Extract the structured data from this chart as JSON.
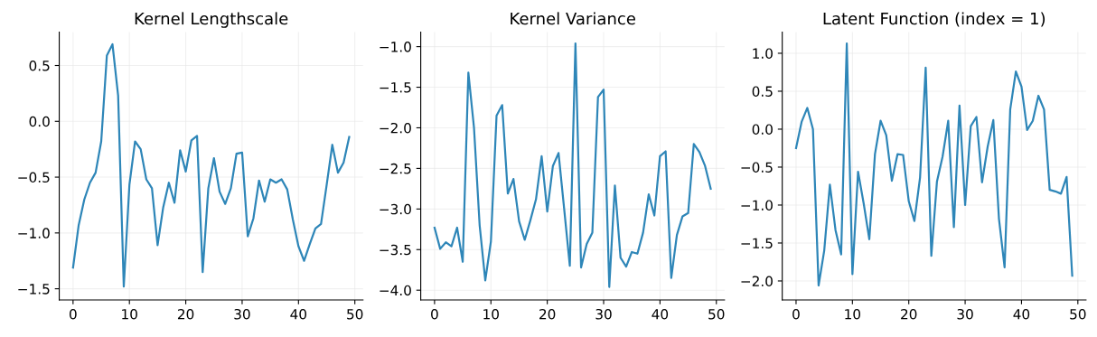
{
  "chart_data": [
    {
      "type": "line",
      "title": "Kernel Lengthscale",
      "x": [
        0,
        1,
        2,
        3,
        4,
        5,
        6,
        7,
        8,
        9,
        10,
        11,
        12,
        13,
        14,
        15,
        16,
        17,
        18,
        19,
        20,
        21,
        22,
        23,
        24,
        25,
        26,
        27,
        28,
        29,
        30,
        31,
        32,
        33,
        34,
        35,
        36,
        37,
        38,
        39,
        40,
        41,
        42,
        43,
        44,
        45,
        46,
        47,
        48,
        49
      ],
      "series": [
        {
          "color": "#2e86b8",
          "values": [
            -1.31,
            -0.93,
            -0.7,
            -0.55,
            -0.46,
            -0.18,
            0.59,
            0.69,
            0.23,
            -1.48,
            -0.57,
            -0.18,
            -0.25,
            -0.52,
            -0.6,
            -1.11,
            -0.77,
            -0.55,
            -0.73,
            -0.26,
            -0.45,
            -0.17,
            -0.13,
            -1.35,
            -0.6,
            -0.33,
            -0.63,
            -0.74,
            -0.6,
            -0.29,
            -0.28,
            -1.03,
            -0.87,
            -0.53,
            -0.72,
            -0.52,
            -0.55,
            -0.52,
            -0.61,
            -0.88,
            -1.12,
            -1.25,
            -1.1,
            -0.96,
            -0.92,
            -0.57,
            -0.21,
            -0.46,
            -0.37,
            -0.14
          ]
        }
      ],
      "xlim": [
        -2.45,
        51.45
      ],
      "xticks": [
        0,
        10,
        20,
        30,
        40,
        50
      ],
      "ylim": [
        -1.6,
        0.8
      ],
      "yticks": [
        {
          "value": -1.5,
          "label": "−1.5"
        },
        {
          "value": -1.0,
          "label": "−1.0"
        },
        {
          "value": -0.5,
          "label": "−0.5"
        },
        {
          "value": 0.0,
          "label": "0.0"
        },
        {
          "value": 0.5,
          "label": "0.5"
        }
      ],
      "grid": true
    },
    {
      "type": "line",
      "title": "Kernel Variance",
      "x": [
        0,
        1,
        2,
        3,
        4,
        5,
        6,
        7,
        8,
        9,
        10,
        11,
        12,
        13,
        14,
        15,
        16,
        17,
        18,
        19,
        20,
        21,
        22,
        23,
        24,
        25,
        26,
        27,
        28,
        29,
        30,
        31,
        32,
        33,
        34,
        35,
        36,
        37,
        38,
        39,
        40,
        41,
        42,
        43,
        44,
        45,
        46,
        47,
        48,
        49
      ],
      "series": [
        {
          "color": "#2e86b8",
          "values": [
            -3.23,
            -3.49,
            -3.41,
            -3.46,
            -3.23,
            -3.65,
            -1.32,
            -2.0,
            -3.2,
            -3.88,
            -3.4,
            -1.85,
            -1.72,
            -2.81,
            -2.63,
            -3.15,
            -3.38,
            -3.14,
            -2.88,
            -2.35,
            -3.03,
            -2.47,
            -2.31,
            -3.0,
            -3.7,
            -0.96,
            -3.72,
            -3.43,
            -3.29,
            -1.62,
            -1.53,
            -3.96,
            -2.71,
            -3.6,
            -3.71,
            -3.53,
            -3.55,
            -3.29,
            -2.82,
            -3.08,
            -2.35,
            -2.29,
            -3.85,
            -3.32,
            -3.09,
            -3.05,
            -2.2,
            -2.3,
            -2.47,
            -2.75
          ]
        }
      ],
      "xlim": [
        -2.45,
        51.45
      ],
      "xticks": [
        0,
        10,
        20,
        30,
        40,
        50
      ],
      "ylim": [
        -4.12,
        -0.82
      ],
      "yticks": [
        {
          "value": -4.0,
          "label": "−4.0"
        },
        {
          "value": -3.5,
          "label": "−3.5"
        },
        {
          "value": -3.0,
          "label": "−3.0"
        },
        {
          "value": -2.5,
          "label": "−2.5"
        },
        {
          "value": -2.0,
          "label": "−2.0"
        },
        {
          "value": -1.5,
          "label": "−1.5"
        },
        {
          "value": -1.0,
          "label": "−1.0"
        }
      ],
      "grid": true
    },
    {
      "type": "line",
      "title": "Latent Function (index = 1)",
      "x": [
        0,
        1,
        2,
        3,
        4,
        5,
        6,
        7,
        8,
        9,
        10,
        11,
        12,
        13,
        14,
        15,
        16,
        17,
        18,
        19,
        20,
        21,
        22,
        23,
        24,
        25,
        26,
        27,
        28,
        29,
        30,
        31,
        32,
        33,
        34,
        35,
        36,
        37,
        38,
        39,
        40,
        41,
        42,
        43,
        44,
        45,
        46,
        47,
        48,
        49
      ],
      "series": [
        {
          "color": "#2e86b8",
          "values": [
            -0.25,
            0.1,
            0.28,
            0.0,
            -2.06,
            -1.6,
            -0.73,
            -1.33,
            -1.65,
            1.13,
            -1.91,
            -0.56,
            -0.98,
            -1.45,
            -0.33,
            0.11,
            -0.08,
            -0.68,
            -0.33,
            -0.34,
            -0.95,
            -1.21,
            -0.64,
            0.81,
            -1.67,
            -0.69,
            -0.36,
            0.11,
            -1.29,
            0.31,
            -1.0,
            0.04,
            0.16,
            -0.7,
            -0.23,
            0.12,
            -1.18,
            -1.82,
            0.26,
            0.76,
            0.56,
            -0.01,
            0.11,
            0.44,
            0.26,
            -0.8,
            -0.82,
            -0.85,
            -0.63,
            -1.93
          ]
        }
      ],
      "xlim": [
        -2.45,
        51.45
      ],
      "xticks": [
        0,
        10,
        20,
        30,
        40,
        50
      ],
      "ylim": [
        -2.25,
        1.28
      ],
      "yticks": [
        {
          "value": -2.0,
          "label": "−2.0"
        },
        {
          "value": -1.5,
          "label": "−1.5"
        },
        {
          "value": -1.0,
          "label": "−1.0"
        },
        {
          "value": -0.5,
          "label": "−0.5"
        },
        {
          "value": 0.0,
          "label": "0.0"
        },
        {
          "value": 0.5,
          "label": "0.5"
        },
        {
          "value": 1.0,
          "label": "1.0"
        }
      ],
      "grid": true
    }
  ]
}
